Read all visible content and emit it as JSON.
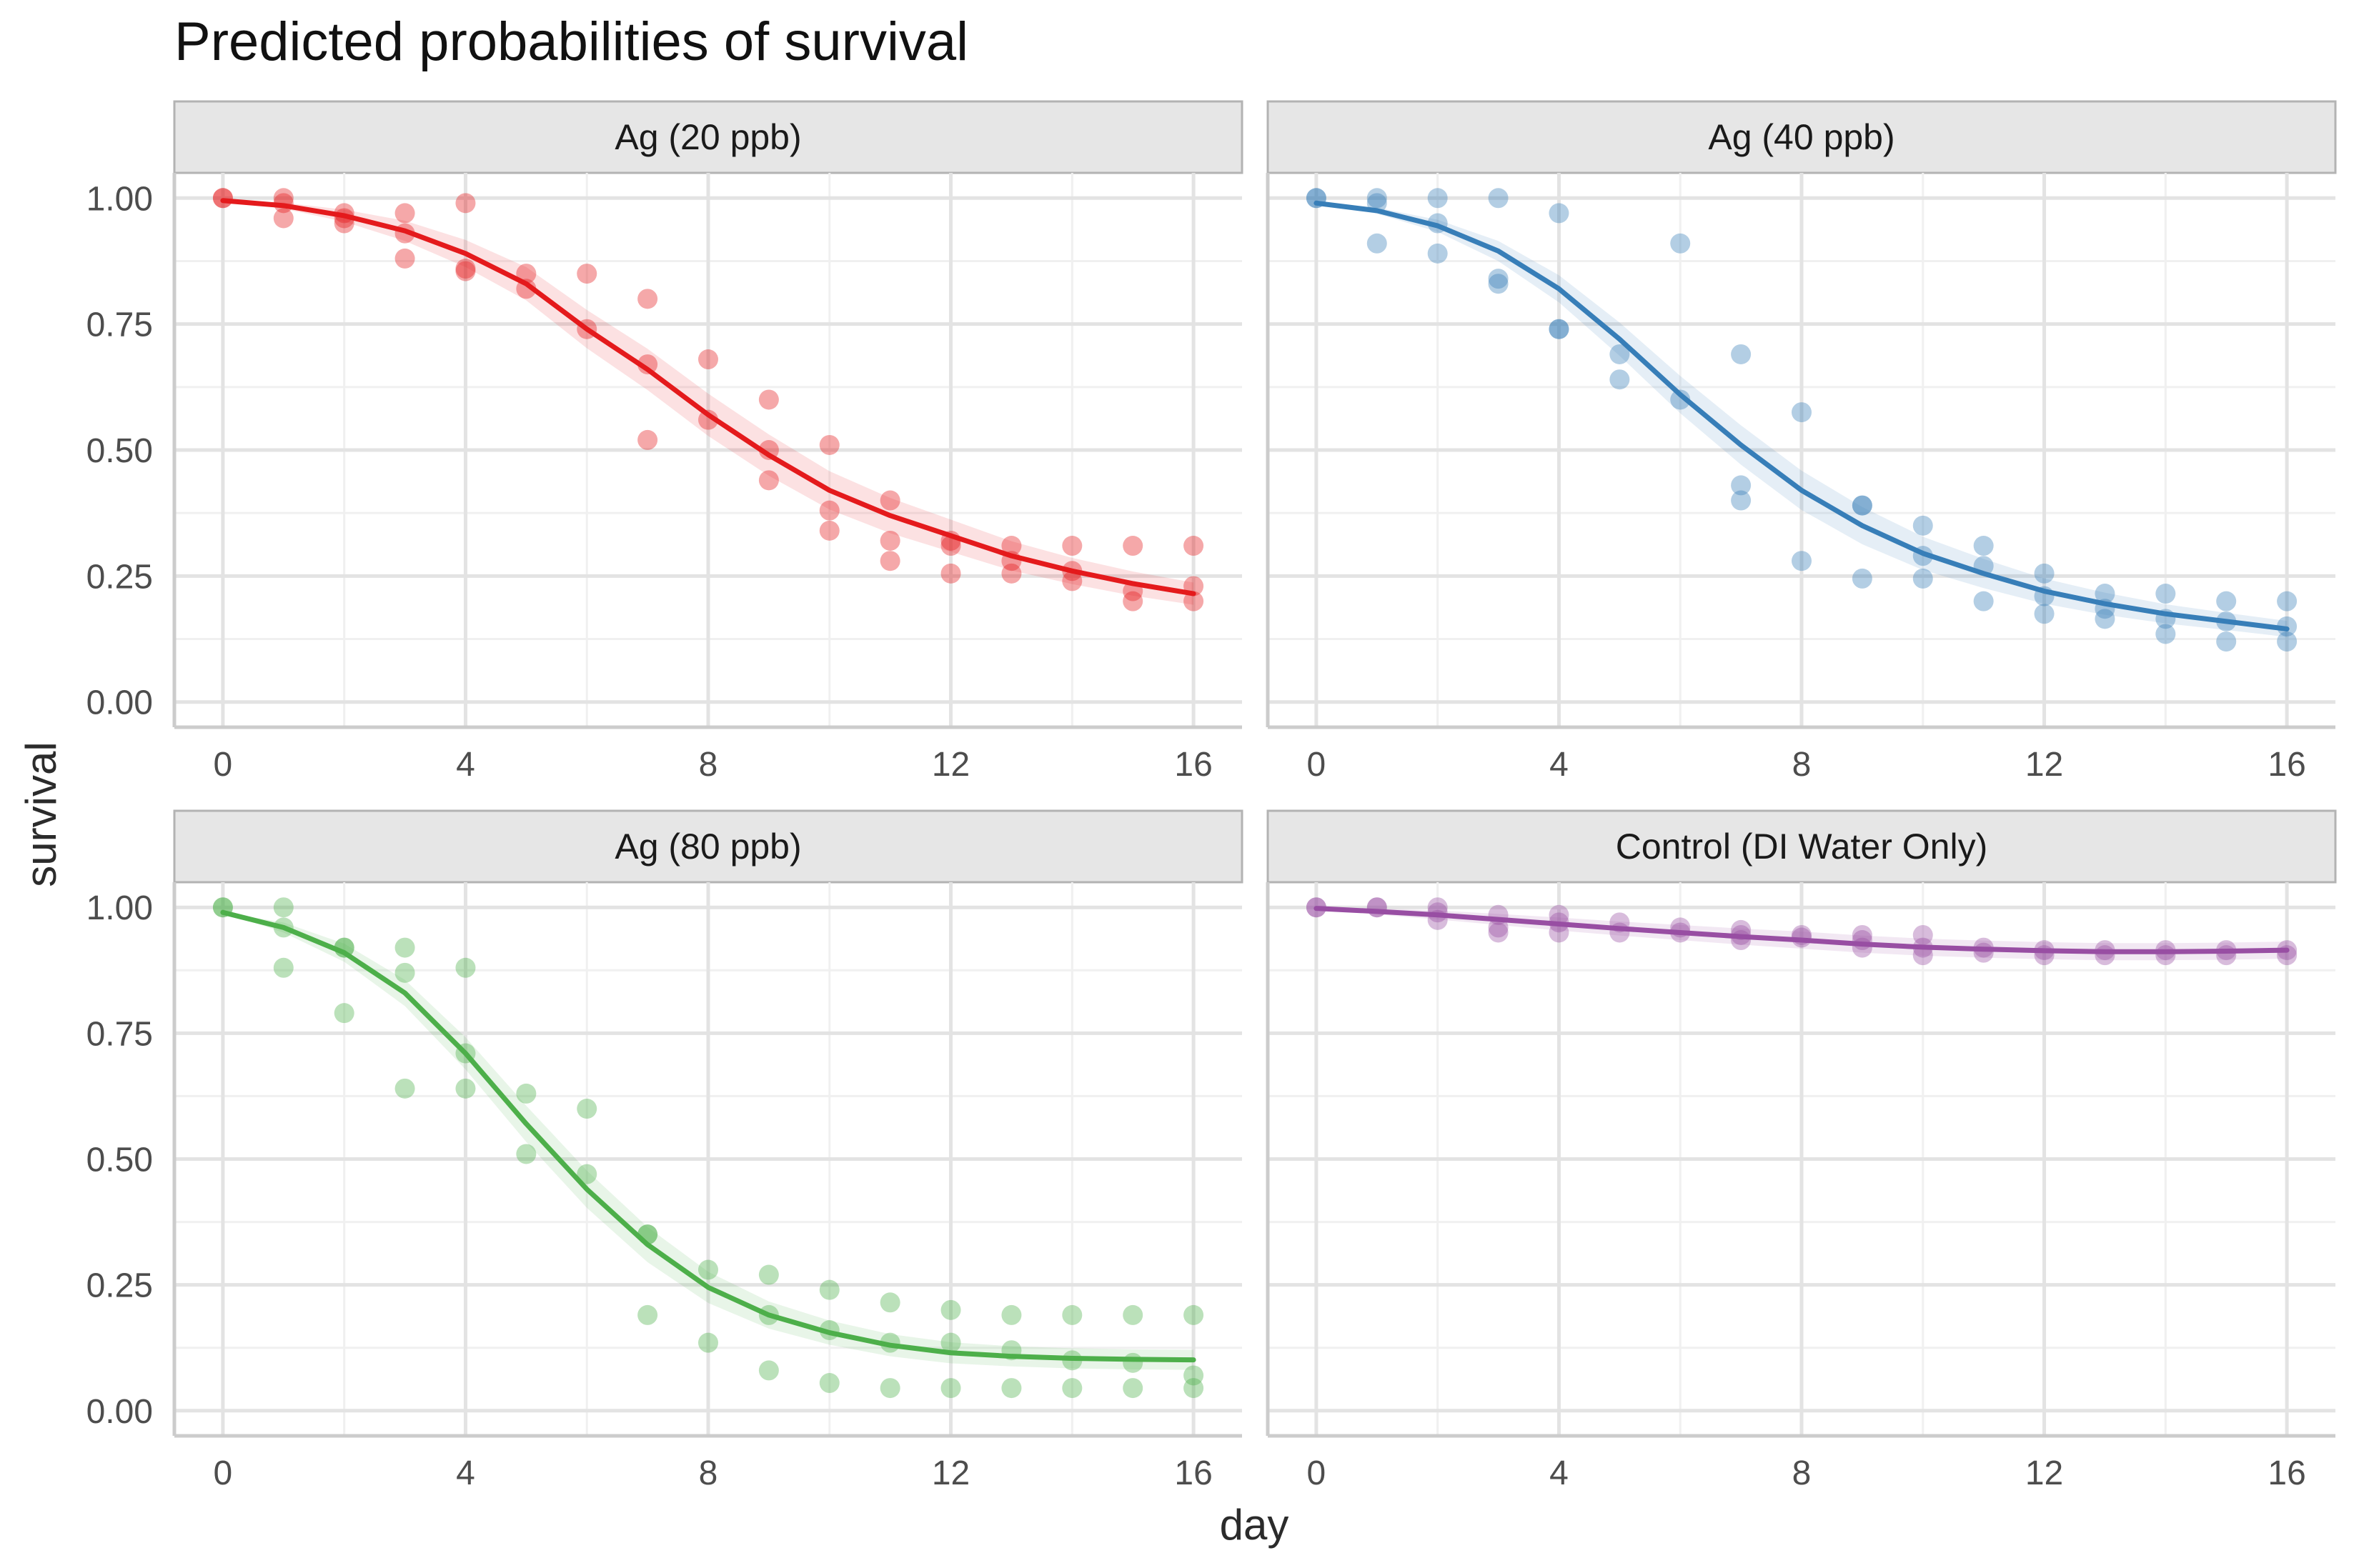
{
  "chart_data": {
    "type": "scatter",
    "title": "Predicted probabilities of survival",
    "xlabel": "day",
    "ylabel": "survival",
    "xlim": [
      -0.8,
      16.8
    ],
    "ylim": [
      -0.05,
      1.05
    ],
    "x_ticks": [
      0,
      4,
      8,
      12,
      16
    ],
    "x_tick_labels": [
      "0",
      "4",
      "8",
      "12",
      "16"
    ],
    "y_ticks": [
      0,
      0.25,
      0.5,
      0.75,
      1.0
    ],
    "y_tick_labels": [
      "0.00",
      "0.25",
      "0.50",
      "0.75",
      "1.00"
    ],
    "grid": true,
    "layout": "2x2 facets",
    "facets": [
      {
        "label": "Ag (20 ppb)",
        "color": "#e41a1c",
        "band_halfwidth": [
          0,
          0.006,
          0.012,
          0.02,
          0.027,
          0.033,
          0.038,
          0.041,
          0.042,
          0.041,
          0.038,
          0.035,
          0.032,
          0.029,
          0.026,
          0.024,
          0.022
        ],
        "line": {
          "x": [
            0,
            1,
            2,
            3,
            4,
            5,
            6,
            7,
            8,
            9,
            10,
            11,
            12,
            13,
            14,
            15,
            16
          ],
          "y": [
            0.995,
            0.985,
            0.965,
            0.935,
            0.89,
            0.83,
            0.74,
            0.66,
            0.57,
            0.49,
            0.42,
            0.37,
            0.33,
            0.29,
            0.26,
            0.235,
            0.215
          ]
        },
        "points": [
          [
            0,
            1.0
          ],
          [
            0,
            1.0
          ],
          [
            1,
            1.0
          ],
          [
            1,
            0.99
          ],
          [
            1,
            0.96
          ],
          [
            2,
            0.97
          ],
          [
            2,
            0.95
          ],
          [
            2,
            0.96
          ],
          [
            3,
            0.97
          ],
          [
            3,
            0.93
          ],
          [
            3,
            0.88
          ],
          [
            4,
            0.99
          ],
          [
            4,
            0.86
          ],
          [
            4,
            0.855
          ],
          [
            5,
            0.85
          ],
          [
            5,
            0.82
          ],
          [
            6,
            0.85
          ],
          [
            6,
            0.74
          ],
          [
            7,
            0.8
          ],
          [
            7,
            0.67
          ],
          [
            7,
            0.52
          ],
          [
            8,
            0.68
          ],
          [
            8,
            0.56
          ],
          [
            9,
            0.6
          ],
          [
            9,
            0.5
          ],
          [
            9,
            0.44
          ],
          [
            10,
            0.51
          ],
          [
            10,
            0.38
          ],
          [
            10,
            0.34
          ],
          [
            11,
            0.4
          ],
          [
            11,
            0.32
          ],
          [
            11,
            0.28
          ],
          [
            12,
            0.32
          ],
          [
            12,
            0.31
          ],
          [
            12,
            0.255
          ],
          [
            13,
            0.31
          ],
          [
            13,
            0.28
          ],
          [
            13,
            0.255
          ],
          [
            14,
            0.31
          ],
          [
            14,
            0.26
          ],
          [
            14,
            0.24
          ],
          [
            15,
            0.31
          ],
          [
            15,
            0.22
          ],
          [
            15,
            0.2
          ],
          [
            16,
            0.31
          ],
          [
            16,
            0.23
          ],
          [
            16,
            0.2
          ]
        ]
      },
      {
        "label": "Ag (40 ppb)",
        "color": "#377eb8",
        "band_halfwidth": [
          0,
          0.006,
          0.012,
          0.02,
          0.027,
          0.033,
          0.037,
          0.039,
          0.039,
          0.037,
          0.033,
          0.029,
          0.025,
          0.022,
          0.019,
          0.017,
          0.016
        ],
        "line": {
          "x": [
            0,
            1,
            2,
            3,
            4,
            5,
            6,
            7,
            8,
            9,
            10,
            11,
            12,
            13,
            14,
            15,
            16
          ],
          "y": [
            0.99,
            0.975,
            0.945,
            0.895,
            0.82,
            0.72,
            0.61,
            0.51,
            0.42,
            0.35,
            0.295,
            0.255,
            0.22,
            0.195,
            0.175,
            0.16,
            0.145
          ]
        },
        "points": [
          [
            0,
            1.0
          ],
          [
            0,
            1.0
          ],
          [
            1,
            1.0
          ],
          [
            1,
            0.99
          ],
          [
            1,
            0.91
          ],
          [
            2,
            1.0
          ],
          [
            2,
            0.95
          ],
          [
            2,
            0.89
          ],
          [
            3,
            1.0
          ],
          [
            3,
            0.84
          ],
          [
            3,
            0.83
          ],
          [
            4,
            0.97
          ],
          [
            4,
            0.74
          ],
          [
            4,
            0.74
          ],
          [
            5,
            0.69
          ],
          [
            5,
            0.64
          ],
          [
            6,
            0.91
          ],
          [
            6,
            0.6
          ],
          [
            7,
            0.69
          ],
          [
            7,
            0.43
          ],
          [
            7,
            0.4
          ],
          [
            8,
            0.575
          ],
          [
            8,
            0.28
          ],
          [
            9,
            0.39
          ],
          [
            9,
            0.39
          ],
          [
            9,
            0.245
          ],
          [
            10,
            0.35
          ],
          [
            10,
            0.29
          ],
          [
            10,
            0.245
          ],
          [
            11,
            0.31
          ],
          [
            11,
            0.27
          ],
          [
            11,
            0.2
          ],
          [
            12,
            0.255
          ],
          [
            12,
            0.21
          ],
          [
            12,
            0.175
          ],
          [
            13,
            0.215
          ],
          [
            13,
            0.185
          ],
          [
            13,
            0.165
          ],
          [
            14,
            0.215
          ],
          [
            14,
            0.165
          ],
          [
            14,
            0.135
          ],
          [
            15,
            0.2
          ],
          [
            15,
            0.16
          ],
          [
            15,
            0.12
          ],
          [
            16,
            0.2
          ],
          [
            16,
            0.15
          ],
          [
            16,
            0.12
          ]
        ]
      },
      {
        "label": "Ag (80 ppb)",
        "color": "#4daf4a",
        "band_halfwidth": [
          0,
          0.01,
          0.018,
          0.026,
          0.032,
          0.036,
          0.037,
          0.035,
          0.031,
          0.027,
          0.024,
          0.022,
          0.021,
          0.02,
          0.02,
          0.02,
          0.02
        ],
        "line": {
          "x": [
            0,
            1,
            2,
            3,
            4,
            5,
            6,
            7,
            8,
            9,
            10,
            11,
            12,
            13,
            14,
            15,
            16
          ],
          "y": [
            0.99,
            0.96,
            0.91,
            0.83,
            0.71,
            0.57,
            0.44,
            0.33,
            0.245,
            0.19,
            0.155,
            0.13,
            0.115,
            0.108,
            0.104,
            0.102,
            0.101
          ]
        },
        "points": [
          [
            0,
            1.0
          ],
          [
            0,
            1.0
          ],
          [
            1,
            1.0
          ],
          [
            1,
            0.96
          ],
          [
            1,
            0.88
          ],
          [
            2,
            0.92
          ],
          [
            2,
            0.92
          ],
          [
            2,
            0.79
          ],
          [
            3,
            0.92
          ],
          [
            3,
            0.87
          ],
          [
            3,
            0.64
          ],
          [
            4,
            0.88
          ],
          [
            4,
            0.71
          ],
          [
            4,
            0.64
          ],
          [
            5,
            0.63
          ],
          [
            5,
            0.51
          ],
          [
            6,
            0.6
          ],
          [
            6,
            0.47
          ],
          [
            7,
            0.35
          ],
          [
            7,
            0.35
          ],
          [
            7,
            0.19
          ],
          [
            8,
            0.28
          ],
          [
            8,
            0.135
          ],
          [
            9,
            0.27
          ],
          [
            9,
            0.19
          ],
          [
            9,
            0.08
          ],
          [
            10,
            0.24
          ],
          [
            10,
            0.16
          ],
          [
            10,
            0.055
          ],
          [
            11,
            0.215
          ],
          [
            11,
            0.135
          ],
          [
            11,
            0.045
          ],
          [
            12,
            0.2
          ],
          [
            12,
            0.135
          ],
          [
            12,
            0.045
          ],
          [
            13,
            0.19
          ],
          [
            13,
            0.12
          ],
          [
            13,
            0.045
          ],
          [
            14,
            0.19
          ],
          [
            14,
            0.1
          ],
          [
            14,
            0.045
          ],
          [
            15,
            0.19
          ],
          [
            15,
            0.095
          ],
          [
            15,
            0.045
          ],
          [
            16,
            0.19
          ],
          [
            16,
            0.07
          ],
          [
            16,
            0.045
          ]
        ]
      },
      {
        "label": "Control (DI Water Only)",
        "color": "#984ea3",
        "band_halfwidth": [
          0,
          0.006,
          0.009,
          0.011,
          0.013,
          0.014,
          0.015,
          0.016,
          0.017,
          0.017,
          0.017,
          0.017,
          0.017,
          0.017,
          0.017,
          0.017,
          0.017
        ],
        "line": {
          "x": [
            0,
            1,
            2,
            3,
            4,
            5,
            6,
            7,
            8,
            9,
            10,
            11,
            12,
            13,
            14,
            15,
            16
          ],
          "y": [
            0.998,
            0.992,
            0.985,
            0.976,
            0.967,
            0.958,
            0.95,
            0.942,
            0.935,
            0.927,
            0.921,
            0.917,
            0.914,
            0.912,
            0.912,
            0.913,
            0.915
          ]
        },
        "points": [
          [
            0,
            1.0
          ],
          [
            0,
            1.0
          ],
          [
            1,
            1.0
          ],
          [
            1,
            1.0
          ],
          [
            2,
            1.0
          ],
          [
            2,
            0.99
          ],
          [
            2,
            0.975
          ],
          [
            3,
            0.985
          ],
          [
            3,
            0.96
          ],
          [
            3,
            0.95
          ],
          [
            4,
            0.985
          ],
          [
            4,
            0.97
          ],
          [
            4,
            0.95
          ],
          [
            5,
            0.97
          ],
          [
            5,
            0.95
          ],
          [
            6,
            0.96
          ],
          [
            6,
            0.95
          ],
          [
            7,
            0.955
          ],
          [
            7,
            0.945
          ],
          [
            7,
            0.935
          ],
          [
            8,
            0.945
          ],
          [
            8,
            0.94
          ],
          [
            9,
            0.945
          ],
          [
            9,
            0.935
          ],
          [
            9,
            0.92
          ],
          [
            10,
            0.945
          ],
          [
            10,
            0.92
          ],
          [
            10,
            0.905
          ],
          [
            11,
            0.92
          ],
          [
            11,
            0.91
          ],
          [
            12,
            0.915
          ],
          [
            12,
            0.905
          ],
          [
            13,
            0.915
          ],
          [
            13,
            0.905
          ],
          [
            14,
            0.915
          ],
          [
            14,
            0.905
          ],
          [
            15,
            0.915
          ],
          [
            15,
            0.905
          ],
          [
            16,
            0.915
          ],
          [
            16,
            0.905
          ]
        ]
      }
    ]
  }
}
